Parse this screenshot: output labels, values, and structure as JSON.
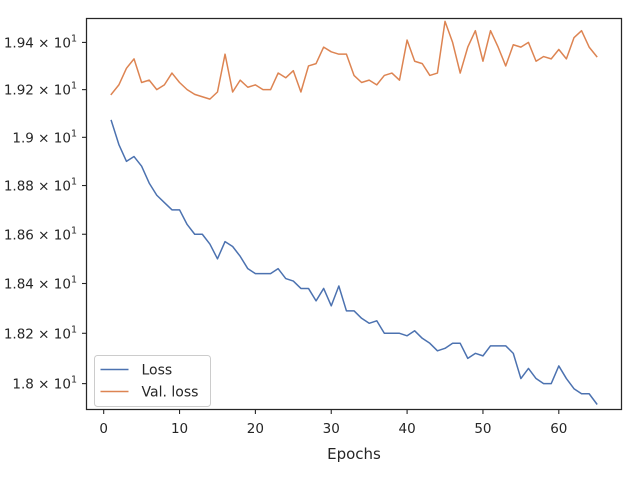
{
  "chart_data": {
    "type": "line",
    "title": "",
    "xlabel": "Epochs",
    "ylabel": "",
    "yscale": "log",
    "xlim": [
      -2.2,
      68.2
    ],
    "ylim": [
      17.9,
      19.5
    ],
    "xticks": [
      0,
      10,
      20,
      30,
      40,
      50,
      60
    ],
    "xtick_labels": [
      "0",
      "10",
      "20",
      "30",
      "40",
      "50",
      "60"
    ],
    "yticks": [
      18.0,
      18.2,
      18.4,
      18.6,
      18.8,
      19.0,
      19.2,
      19.4
    ],
    "ytick_labels": [
      {
        "mantissa": "1.8",
        "exp": "1"
      },
      {
        "mantissa": "1.82",
        "exp": "1"
      },
      {
        "mantissa": "1.84",
        "exp": "1"
      },
      {
        "mantissa": "1.86",
        "exp": "1"
      },
      {
        "mantissa": "1.88",
        "exp": "1"
      },
      {
        "mantissa": "1.9",
        "exp": "1"
      },
      {
        "mantissa": "1.92",
        "exp": "1"
      },
      {
        "mantissa": "1.94",
        "exp": "1"
      }
    ],
    "grid": false,
    "legend_position": "lower-left",
    "x": [
      1,
      2,
      3,
      4,
      5,
      6,
      7,
      8,
      9,
      10,
      11,
      12,
      13,
      14,
      15,
      16,
      17,
      18,
      19,
      20,
      21,
      22,
      23,
      24,
      25,
      26,
      27,
      28,
      29,
      30,
      31,
      32,
      33,
      34,
      35,
      36,
      37,
      38,
      39,
      40,
      41,
      42,
      43,
      44,
      45,
      46,
      47,
      48,
      49,
      50,
      51,
      52,
      53,
      54,
      55,
      56,
      57,
      58,
      59,
      60,
      61,
      62,
      63,
      64,
      65
    ],
    "series": [
      {
        "name": "Loss",
        "color": "#4c72b0",
        "values": [
          19.07,
          18.97,
          18.9,
          18.92,
          18.88,
          18.81,
          18.76,
          18.73,
          18.7,
          18.7,
          18.64,
          18.6,
          18.6,
          18.56,
          18.5,
          18.57,
          18.55,
          18.51,
          18.46,
          18.44,
          18.44,
          18.44,
          18.46,
          18.42,
          18.41,
          18.38,
          18.38,
          18.33,
          18.38,
          18.31,
          18.39,
          18.29,
          18.29,
          18.26,
          18.24,
          18.25,
          18.2,
          18.2,
          18.2,
          18.19,
          18.21,
          18.18,
          18.16,
          18.13,
          18.14,
          18.16,
          18.16,
          18.1,
          18.12,
          18.11,
          18.15,
          18.15,
          18.15,
          18.12,
          18.02,
          18.06,
          18.02,
          18.0,
          18.0,
          18.07,
          18.02,
          17.98,
          17.96,
          17.96,
          17.92
        ]
      },
      {
        "name": "Val. loss",
        "color": "#dd8452",
        "values": [
          19.18,
          19.22,
          19.29,
          19.33,
          19.23,
          19.24,
          19.2,
          19.22,
          19.27,
          19.23,
          19.2,
          19.18,
          19.17,
          19.16,
          19.19,
          19.35,
          19.19,
          19.24,
          19.21,
          19.22,
          19.2,
          19.2,
          19.27,
          19.25,
          19.28,
          19.19,
          19.3,
          19.31,
          19.38,
          19.36,
          19.35,
          19.35,
          19.26,
          19.23,
          19.24,
          19.22,
          19.26,
          19.27,
          19.24,
          19.41,
          19.32,
          19.31,
          19.26,
          19.27,
          19.49,
          19.4,
          19.27,
          19.38,
          19.45,
          19.32,
          19.45,
          19.38,
          19.3,
          19.39,
          19.38,
          19.4,
          19.32,
          19.34,
          19.33,
          19.37,
          19.33,
          19.42,
          19.45,
          19.38,
          19.34
        ]
      }
    ]
  }
}
